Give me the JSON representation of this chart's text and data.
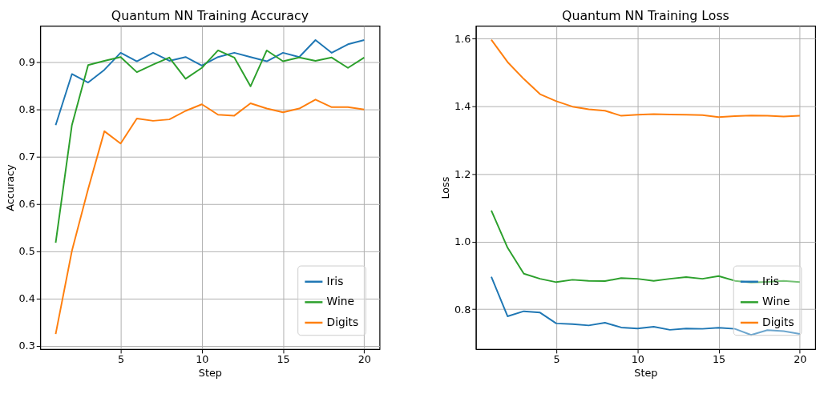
{
  "chart_data": [
    {
      "type": "line",
      "title": "Quantum NN Training Accuracy",
      "xlabel": "Step",
      "ylabel": "Accuracy",
      "x": [
        1,
        2,
        3,
        4,
        5,
        6,
        7,
        8,
        9,
        10,
        11,
        12,
        13,
        14,
        15,
        16,
        17,
        18,
        19,
        20
      ],
      "series": [
        {
          "name": "Iris",
          "color": "#1f77b4",
          "values": [
            0.767,
            0.875,
            0.857,
            0.884,
            0.92,
            0.902,
            0.92,
            0.903,
            0.911,
            0.893,
            0.911,
            0.92,
            0.911,
            0.902,
            0.92,
            0.911,
            0.947,
            0.92,
            0.938,
            0.947
          ]
        },
        {
          "name": "Wine",
          "color": "#2ca02c",
          "values": [
            0.518,
            0.767,
            0.894,
            0.903,
            0.911,
            0.879,
            0.895,
            0.91,
            0.865,
            0.888,
            0.925,
            0.91,
            0.849,
            0.925,
            0.902,
            0.91,
            0.903,
            0.91,
            0.888,
            0.91
          ]
        },
        {
          "name": "Digits",
          "color": "#ff7f0e",
          "values": [
            0.325,
            0.501,
            0.632,
            0.754,
            0.728,
            0.781,
            0.776,
            0.779,
            0.797,
            0.811,
            0.789,
            0.787,
            0.813,
            0.802,
            0.794,
            0.802,
            0.821,
            0.805,
            0.805,
            0.8
          ]
        }
      ],
      "xlim": [
        0.05,
        20.95
      ],
      "ylim": [
        0.293,
        0.977
      ],
      "xticks": [
        5,
        10,
        15,
        20
      ],
      "yticks": [
        0.3,
        0.4,
        0.5,
        0.6,
        0.7,
        0.8,
        0.9
      ],
      "grid": true,
      "legend": "bottom right"
    },
    {
      "type": "line",
      "title": "Quantum NN Training Loss",
      "xlabel": "Step",
      "ylabel": "Loss",
      "x": [
        1,
        2,
        3,
        4,
        5,
        6,
        7,
        8,
        9,
        10,
        11,
        12,
        13,
        14,
        15,
        16,
        17,
        18,
        19,
        20
      ],
      "series": [
        {
          "name": "Iris",
          "color": "#1f77b4",
          "values": [
            0.896,
            0.779,
            0.794,
            0.79,
            0.758,
            0.756,
            0.752,
            0.76,
            0.746,
            0.743,
            0.748,
            0.739,
            0.743,
            0.742,
            0.745,
            0.742,
            0.724,
            0.738,
            0.735,
            0.727
          ]
        },
        {
          "name": "Wine",
          "color": "#2ca02c",
          "values": [
            1.092,
            0.982,
            0.905,
            0.89,
            0.88,
            0.887,
            0.884,
            0.883,
            0.892,
            0.89,
            0.884,
            0.89,
            0.895,
            0.89,
            0.898,
            0.884,
            0.879,
            0.881,
            0.884,
            0.88
          ]
        },
        {
          "name": "Digits",
          "color": "#ff7f0e",
          "values": [
            1.597,
            1.531,
            1.481,
            1.436,
            1.415,
            1.399,
            1.391,
            1.387,
            1.372,
            1.375,
            1.377,
            1.376,
            1.375,
            1.374,
            1.368,
            1.371,
            1.373,
            1.372,
            1.37,
            1.372
          ]
        }
      ],
      "xlim": [
        0.05,
        20.95
      ],
      "ylim": [
        0.682,
        1.638
      ],
      "xticks": [
        5,
        10,
        15,
        20
      ],
      "yticks": [
        0.8,
        {
          "value": 1,
          "label": "1.0"
        },
        1.2,
        1.4,
        1.6
      ],
      "grid": true,
      "legend": "bottom right"
    }
  ]
}
